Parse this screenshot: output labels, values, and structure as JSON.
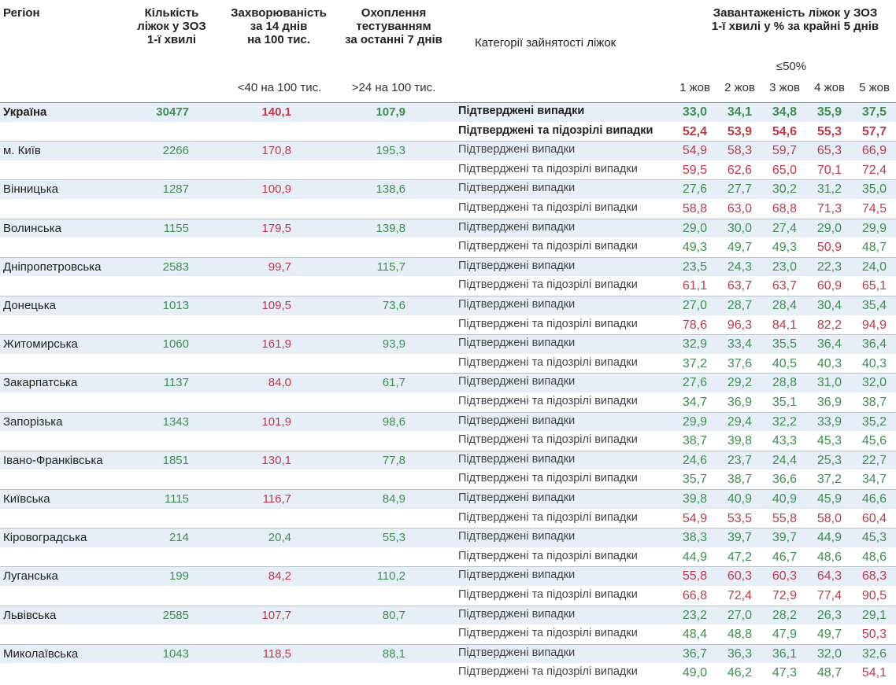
{
  "header": {
    "region": "Регіон",
    "beds": [
      "Кількість",
      "ліжок у ЗОЗ",
      "1-ї хвилі"
    ],
    "incidence": [
      "Захворюваність",
      "за 14 днів",
      "на 100 тис."
    ],
    "testing": [
      "Охоплення",
      "тестуванням",
      "за останні 7 днів"
    ],
    "category": "Категорії зайнятості ліжок",
    "occupancy": [
      "Завантаженість ліжок у ЗОЗ",
      "1-ї хвилі у % за крайні 5 днів"
    ],
    "incidence_threshold": "<40 на 100 тис.",
    "testing_threshold": ">24 на 100 тис.",
    "occupancy_threshold": "≤50%",
    "dates": [
      "1 жов",
      "2 жов",
      "3 жов",
      "4 жов",
      "5 жов"
    ]
  },
  "colors": {
    "beds": "#3f8f50",
    "testing": "#3f8f50"
  },
  "rows": [
    {
      "region": "Україна",
      "beds": "30477",
      "incidence": "140,1",
      "incidence_color": "#c0394b",
      "testing": "107,9",
      "categories": [
        "Підтверджені випадки",
        "Підтверджені та підозрілі випадки"
      ],
      "occupancy": [
        [
          "33,0",
          "34,1",
          "34,8",
          "35,9",
          "37,5"
        ],
        [
          "52,4",
          "53,9",
          "54,6",
          "55,3",
          "57,7"
        ]
      ],
      "occupancy_colors": [
        [
          "#3f8f50",
          "#3f8f50",
          "#3f8f50",
          "#3f8f50",
          "#3f8f50"
        ],
        [
          "#c0394b",
          "#c0394b",
          "#c0394b",
          "#c0394b",
          "#c0394b"
        ]
      ]
    },
    {
      "region": "м. Київ",
      "beds": "2266",
      "incidence": "170,8",
      "incidence_color": "#c0394b",
      "testing": "195,3",
      "categories": [
        "Підтверджені випадки",
        "Підтверджені та підозрілі випадки"
      ],
      "occupancy": [
        [
          "54,9",
          "58,3",
          "59,7",
          "65,3",
          "66,9"
        ],
        [
          "59,5",
          "62,6",
          "65,0",
          "70,1",
          "72,4"
        ]
      ],
      "occupancy_colors": [
        [
          "#c0394b",
          "#c0394b",
          "#c0394b",
          "#c0394b",
          "#c0394b"
        ],
        [
          "#c0394b",
          "#c0394b",
          "#c0394b",
          "#c0394b",
          "#c0394b"
        ]
      ]
    },
    {
      "region": "Вінницька",
      "beds": "1287",
      "incidence": "100,9",
      "incidence_color": "#c0394b",
      "testing": "138,6",
      "categories": [
        "Підтверджені випадки",
        "Підтверджені та підозрілі випадки"
      ],
      "occupancy": [
        [
          "27,6",
          "27,7",
          "30,2",
          "31,2",
          "35,0"
        ],
        [
          "58,8",
          "63,0",
          "68,8",
          "71,3",
          "74,5"
        ]
      ],
      "occupancy_colors": [
        [
          "#3f8f50",
          "#3f8f50",
          "#3f8f50",
          "#3f8f50",
          "#3f8f50"
        ],
        [
          "#c0394b",
          "#c0394b",
          "#c0394b",
          "#c0394b",
          "#c0394b"
        ]
      ]
    },
    {
      "region": "Волинська",
      "beds": "1155",
      "incidence": "179,5",
      "incidence_color": "#c0394b",
      "testing": "139,8",
      "categories": [
        "Підтверджені випадки",
        "Підтверджені та підозрілі випадки"
      ],
      "occupancy": [
        [
          "29,0",
          "30,0",
          "27,4",
          "29,0",
          "29,9"
        ],
        [
          "49,3",
          "49,7",
          "49,3",
          "50,9",
          "48,7"
        ]
      ],
      "occupancy_colors": [
        [
          "#3f8f50",
          "#3f8f50",
          "#3f8f50",
          "#3f8f50",
          "#3f8f50"
        ],
        [
          "#3f8f50",
          "#3f8f50",
          "#3f8f50",
          "#c0394b",
          "#3f8f50"
        ]
      ]
    },
    {
      "region": "Дніпропетровська",
      "beds": "2583",
      "incidence": "99,7",
      "incidence_color": "#c0394b",
      "testing": "115,7",
      "categories": [
        "Підтверджені випадки",
        "Підтверджені та підозрілі випадки"
      ],
      "occupancy": [
        [
          "23,5",
          "24,3",
          "23,0",
          "22,3",
          "24,0"
        ],
        [
          "61,1",
          "63,7",
          "63,7",
          "60,9",
          "65,1"
        ]
      ],
      "occupancy_colors": [
        [
          "#3f8f50",
          "#3f8f50",
          "#3f8f50",
          "#3f8f50",
          "#3f8f50"
        ],
        [
          "#c0394b",
          "#c0394b",
          "#c0394b",
          "#c0394b",
          "#c0394b"
        ]
      ]
    },
    {
      "region": "Донецька",
      "beds": "1013",
      "incidence": "109,5",
      "incidence_color": "#c0394b",
      "testing": "73,6",
      "categories": [
        "Підтверджені випадки",
        "Підтверджені та підозрілі випадки"
      ],
      "occupancy": [
        [
          "27,0",
          "28,7",
          "28,4",
          "30,4",
          "35,4"
        ],
        [
          "78,6",
          "96,3",
          "84,1",
          "82,2",
          "94,9"
        ]
      ],
      "occupancy_colors": [
        [
          "#3f8f50",
          "#3f8f50",
          "#3f8f50",
          "#3f8f50",
          "#3f8f50"
        ],
        [
          "#c0394b",
          "#c0394b",
          "#c0394b",
          "#c0394b",
          "#c0394b"
        ]
      ]
    },
    {
      "region": "Житомирська",
      "beds": "1060",
      "incidence": "161,9",
      "incidence_color": "#c0394b",
      "testing": "93,9",
      "categories": [
        "Підтверджені випадки",
        "Підтверджені та підозрілі випадки"
      ],
      "occupancy": [
        [
          "32,9",
          "33,4",
          "35,5",
          "36,4",
          "36,4"
        ],
        [
          "37,2",
          "37,6",
          "40,5",
          "40,3",
          "40,3"
        ]
      ],
      "occupancy_colors": [
        [
          "#3f8f50",
          "#3f8f50",
          "#3f8f50",
          "#3f8f50",
          "#3f8f50"
        ],
        [
          "#3f8f50",
          "#3f8f50",
          "#3f8f50",
          "#3f8f50",
          "#3f8f50"
        ]
      ]
    },
    {
      "region": "Закарпатська",
      "beds": "1137",
      "incidence": "84,0",
      "incidence_color": "#c0394b",
      "testing": "61,7",
      "categories": [
        "Підтверджені випадки",
        "Підтверджені та підозрілі випадки"
      ],
      "occupancy": [
        [
          "27,6",
          "29,2",
          "28,8",
          "31,0",
          "32,0"
        ],
        [
          "34,7",
          "36,9",
          "35,1",
          "36,9",
          "38,7"
        ]
      ],
      "occupancy_colors": [
        [
          "#3f8f50",
          "#3f8f50",
          "#3f8f50",
          "#3f8f50",
          "#3f8f50"
        ],
        [
          "#3f8f50",
          "#3f8f50",
          "#3f8f50",
          "#3f8f50",
          "#3f8f50"
        ]
      ]
    },
    {
      "region": "Запорізька",
      "beds": "1343",
      "incidence": "101,9",
      "incidence_color": "#c0394b",
      "testing": "98,6",
      "categories": [
        "Підтверджені випадки",
        "Підтверджені та підозрілі випадки"
      ],
      "occupancy": [
        [
          "29,9",
          "29,4",
          "32,2",
          "33,9",
          "35,2"
        ],
        [
          "38,7",
          "39,8",
          "43,3",
          "45,3",
          "45,6"
        ]
      ],
      "occupancy_colors": [
        [
          "#3f8f50",
          "#3f8f50",
          "#3f8f50",
          "#3f8f50",
          "#3f8f50"
        ],
        [
          "#3f8f50",
          "#3f8f50",
          "#3f8f50",
          "#3f8f50",
          "#3f8f50"
        ]
      ]
    },
    {
      "region": "Івано-Франківська",
      "beds": "1851",
      "incidence": "130,1",
      "incidence_color": "#c0394b",
      "testing": "77,8",
      "categories": [
        "Підтверджені випадки",
        "Підтверджені та підозрілі випадки"
      ],
      "occupancy": [
        [
          "24,6",
          "23,7",
          "24,4",
          "25,3",
          "22,7"
        ],
        [
          "35,7",
          "38,7",
          "36,6",
          "37,2",
          "34,7"
        ]
      ],
      "occupancy_colors": [
        [
          "#3f8f50",
          "#3f8f50",
          "#3f8f50",
          "#3f8f50",
          "#3f8f50"
        ],
        [
          "#3f8f50",
          "#3f8f50",
          "#3f8f50",
          "#3f8f50",
          "#3f8f50"
        ]
      ]
    },
    {
      "region": "Київська",
      "beds": "1115",
      "incidence": "116,7",
      "incidence_color": "#c0394b",
      "testing": "84,9",
      "categories": [
        "Підтверджені випадки",
        "Підтверджені та підозрілі випадки"
      ],
      "occupancy": [
        [
          "39,8",
          "40,9",
          "40,9",
          "45,9",
          "46,6"
        ],
        [
          "54,9",
          "53,5",
          "55,8",
          "58,0",
          "60,4"
        ]
      ],
      "occupancy_colors": [
        [
          "#3f8f50",
          "#3f8f50",
          "#3f8f50",
          "#3f8f50",
          "#3f8f50"
        ],
        [
          "#c0394b",
          "#c0394b",
          "#c0394b",
          "#c0394b",
          "#c0394b"
        ]
      ]
    },
    {
      "region": "Кіровоградська",
      "beds": "214",
      "incidence": "20,4",
      "incidence_color": "#3f8f50",
      "testing": "55,3",
      "categories": [
        "Підтверджені випадки",
        "Підтверджені та підозрілі випадки"
      ],
      "occupancy": [
        [
          "38,3",
          "39,7",
          "39,7",
          "44,9",
          "45,3"
        ],
        [
          "44,9",
          "47,2",
          "46,7",
          "48,6",
          "48,6"
        ]
      ],
      "occupancy_colors": [
        [
          "#3f8f50",
          "#3f8f50",
          "#3f8f50",
          "#3f8f50",
          "#3f8f50"
        ],
        [
          "#3f8f50",
          "#3f8f50",
          "#3f8f50",
          "#3f8f50",
          "#3f8f50"
        ]
      ]
    },
    {
      "region": "Луганська",
      "beds": "199",
      "incidence": "84,2",
      "incidence_color": "#c0394b",
      "testing": "110,2",
      "categories": [
        "Підтверджені випадки",
        "Підтверджені та підозрілі випадки"
      ],
      "occupancy": [
        [
          "55,8",
          "60,3",
          "60,3",
          "64,3",
          "68,3"
        ],
        [
          "66,8",
          "72,4",
          "72,9",
          "77,4",
          "90,5"
        ]
      ],
      "occupancy_colors": [
        [
          "#c0394b",
          "#c0394b",
          "#c0394b",
          "#c0394b",
          "#c0394b"
        ],
        [
          "#c0394b",
          "#c0394b",
          "#c0394b",
          "#c0394b",
          "#c0394b"
        ]
      ]
    },
    {
      "region": "Львівська",
      "beds": "2585",
      "incidence": "107,7",
      "incidence_color": "#c0394b",
      "testing": "80,7",
      "categories": [
        "Підтверджені випадки",
        "Підтверджені та підозрілі випадки"
      ],
      "occupancy": [
        [
          "23,2",
          "27,0",
          "28,2",
          "26,3",
          "29,1"
        ],
        [
          "48,4",
          "48,8",
          "47,9",
          "49,7",
          "50,3"
        ]
      ],
      "occupancy_colors": [
        [
          "#3f8f50",
          "#3f8f50",
          "#3f8f50",
          "#3f8f50",
          "#3f8f50"
        ],
        [
          "#3f8f50",
          "#3f8f50",
          "#3f8f50",
          "#3f8f50",
          "#c0394b"
        ]
      ]
    },
    {
      "region": "Миколаївська",
      "beds": "1043",
      "incidence": "118,5",
      "incidence_color": "#c0394b",
      "testing": "88,1",
      "categories": [
        "Підтверджені випадки",
        "Підтверджені та підозрілі випадки"
      ],
      "occupancy": [
        [
          "36,7",
          "36,3",
          "36,1",
          "32,0",
          "32,6"
        ],
        [
          "49,0",
          "46,2",
          "47,3",
          "48,7",
          "54,1"
        ]
      ],
      "occupancy_colors": [
        [
          "#3f8f50",
          "#3f8f50",
          "#3f8f50",
          "#3f8f50",
          "#3f8f50"
        ],
        [
          "#3f8f50",
          "#3f8f50",
          "#3f8f50",
          "#3f8f50",
          "#c0394b"
        ]
      ]
    }
  ]
}
